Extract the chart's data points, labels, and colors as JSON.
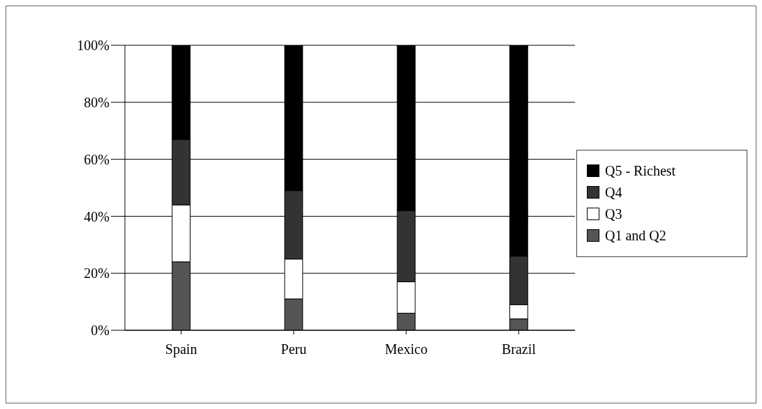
{
  "chart_data": {
    "type": "bar",
    "stacked": true,
    "categories": [
      "Spain",
      "Peru",
      "Mexico",
      "Brazil"
    ],
    "series": [
      {
        "name": "Q1 and Q2",
        "color": "#555555",
        "values": [
          24,
          11,
          6,
          4
        ]
      },
      {
        "name": "Q3",
        "color": "#ffffff",
        "values": [
          20,
          14,
          11,
          5
        ]
      },
      {
        "name": "Q4",
        "color": "#333333",
        "values": [
          23,
          24,
          25,
          17
        ]
      },
      {
        "name": "Q5 - Richest",
        "color": "#000000",
        "values": [
          33,
          51,
          58,
          74
        ]
      }
    ],
    "ylim": [
      0,
      100
    ],
    "yticks": [
      {
        "value": 0,
        "label": "0%"
      },
      {
        "value": 20,
        "label": "20%"
      },
      {
        "value": 40,
        "label": "40%"
      },
      {
        "value": 60,
        "label": "60%"
      },
      {
        "value": 80,
        "label": "80%"
      },
      {
        "value": 100,
        "label": "100%"
      }
    ],
    "grid": "y",
    "legend": "right"
  }
}
